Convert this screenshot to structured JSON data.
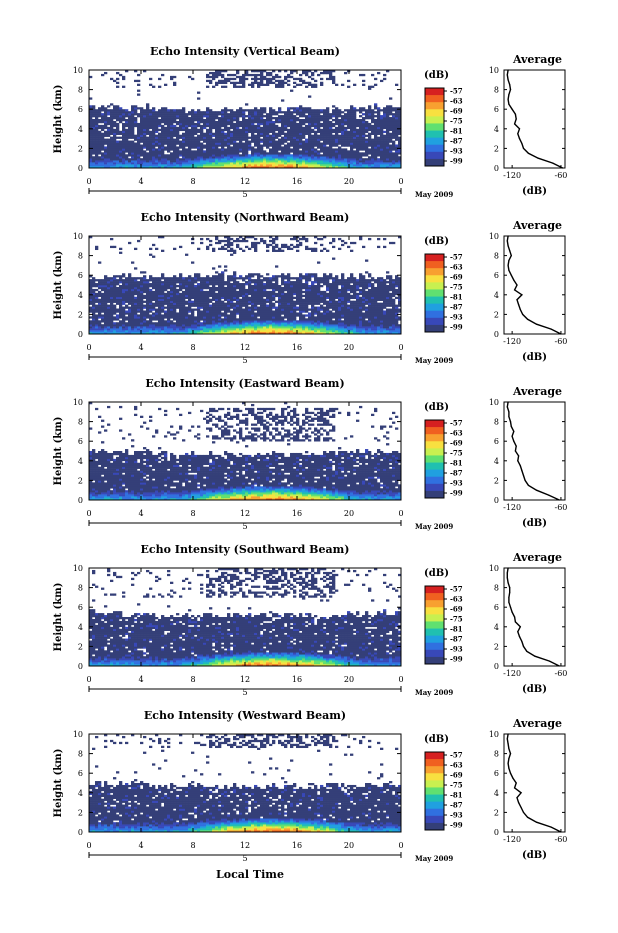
{
  "page": {
    "xlabel": "Local Time",
    "date_label": "May 2009",
    "day_label": "5",
    "ylabel": "Height (km)",
    "colorbar_unit": "(dB)",
    "avg_title": "Average",
    "avg_xlabel": "(dB)"
  },
  "chart_data": [
    {
      "type": "heatmap",
      "title": "Echo Intensity (Vertical Beam)",
      "x_ticks": [
        "0",
        "4",
        "8",
        "12",
        "16",
        "20",
        "0"
      ],
      "y_ticks": [
        "0",
        "2",
        "4",
        "6",
        "8",
        "10"
      ],
      "xlim": [
        0,
        24
      ],
      "ylim": [
        0,
        10
      ],
      "x_unit": "hour",
      "y_unit": "km",
      "colorbar": {
        "ticks": [
          "-57",
          "-63",
          "-69",
          "-75",
          "-81",
          "-87",
          "-93",
          "-99"
        ],
        "colors": [
          "#d62020",
          "#f06020",
          "#f8a030",
          "#f8e040",
          "#c8f050",
          "#60e070",
          "#20c0b0",
          "#20a0e0",
          "#3070e0",
          "#3848b8",
          "#343f78"
        ]
      },
      "layer_top_km": 6.3,
      "cloud_band_km": [
        8.2,
        10
      ],
      "average_profile": {
        "title": "Average",
        "xlabel": "(dB)",
        "x_ticks": [
          "-120",
          "-60"
        ],
        "xlim": [
          -130,
          -55
        ],
        "y_ticks": [
          "0",
          "2",
          "4",
          "6",
          "8",
          "10"
        ],
        "heights": [
          0,
          0.5,
          1,
          1.5,
          2,
          2.5,
          3,
          3.5,
          4,
          4.5,
          5,
          5.5,
          6,
          6.5,
          7,
          7.5,
          8,
          8.5,
          9,
          9.5,
          10
        ],
        "values": [
          -58,
          -70,
          -88,
          -100,
          -106,
          -108,
          -111,
          -113,
          -111,
          -117,
          -115,
          -116,
          -120,
          -124,
          -125,
          -124,
          -122,
          -123,
          -125,
          -126,
          -125
        ]
      }
    },
    {
      "type": "heatmap",
      "title": "Echo Intensity (Northward Beam)",
      "x_ticks": [
        "0",
        "4",
        "8",
        "12",
        "16",
        "20",
        "0"
      ],
      "y_ticks": [
        "0",
        "2",
        "4",
        "6",
        "8",
        "10"
      ],
      "xlim": [
        0,
        24
      ],
      "ylim": [
        0,
        10
      ],
      "x_unit": "hour",
      "y_unit": "km",
      "colorbar": {
        "ticks": [
          "-57",
          "-63",
          "-69",
          "-75",
          "-81",
          "-87",
          "-93",
          "-99"
        ],
        "colors": [
          "#d62020",
          "#f06020",
          "#f8a030",
          "#f8e040",
          "#c8f050",
          "#60e070",
          "#20c0b0",
          "#20a0e0",
          "#3070e0",
          "#3848b8",
          "#343f78"
        ]
      },
      "layer_top_km": 5.8,
      "cloud_band_km": [
        8.3,
        10
      ],
      "average_profile": {
        "title": "Average",
        "xlabel": "(dB)",
        "x_ticks": [
          "-120",
          "-60"
        ],
        "xlim": [
          -130,
          -55
        ],
        "y_ticks": [
          "0",
          "2",
          "4",
          "6",
          "8",
          "10"
        ],
        "heights": [
          0,
          0.5,
          1,
          1.5,
          2,
          2.5,
          3,
          3.5,
          4,
          4.5,
          5,
          5.5,
          6,
          6.5,
          7,
          7.5,
          8,
          8.5,
          9,
          9.5,
          10
        ],
        "values": [
          -60,
          -72,
          -90,
          -101,
          -107,
          -110,
          -112,
          -114,
          -108,
          -117,
          -114,
          -118,
          -121,
          -124,
          -125,
          -124,
          -121,
          -123,
          -125,
          -126,
          -125
        ]
      }
    },
    {
      "type": "heatmap",
      "title": "Echo Intensity (Eastward Beam)",
      "x_ticks": [
        "0",
        "4",
        "8",
        "12",
        "16",
        "20",
        "0"
      ],
      "y_ticks": [
        "0",
        "2",
        "4",
        "6",
        "8",
        "10"
      ],
      "xlim": [
        0,
        24
      ],
      "ylim": [
        0,
        10
      ],
      "x_unit": "hour",
      "y_unit": "km",
      "colorbar": {
        "ticks": [
          "-57",
          "-63",
          "-69",
          "-75",
          "-81",
          "-87",
          "-93",
          "-99"
        ],
        "colors": [
          "#d62020",
          "#f06020",
          "#f8a030",
          "#f8e040",
          "#c8f050",
          "#60e070",
          "#20c0b0",
          "#20a0e0",
          "#3070e0",
          "#3848b8",
          "#343f78"
        ]
      },
      "layer_top_km": 5.0,
      "cloud_band_km": [
        6.0,
        9.5
      ],
      "average_profile": {
        "title": "Average",
        "xlabel": "(dB)",
        "x_ticks": [
          "-120",
          "-60"
        ],
        "xlim": [
          -130,
          -55
        ],
        "y_ticks": [
          "0",
          "2",
          "4",
          "6",
          "8",
          "10"
        ],
        "heights": [
          0,
          0.5,
          1,
          1.5,
          2,
          2.5,
          3,
          3.5,
          4,
          4.5,
          5,
          5.5,
          6,
          6.5,
          7,
          7.5,
          8,
          8.5,
          9,
          9.5,
          10
        ],
        "values": [
          -62,
          -75,
          -90,
          -100,
          -104,
          -106,
          -108,
          -110,
          -113,
          -112,
          -116,
          -115,
          -118,
          -120,
          -118,
          -121,
          -122,
          -124,
          -124,
          -126,
          -125
        ]
      }
    },
    {
      "type": "heatmap",
      "title": "Echo Intensity (Southward Beam)",
      "x_ticks": [
        "0",
        "4",
        "8",
        "12",
        "16",
        "20",
        "0"
      ],
      "y_ticks": [
        "0",
        "2",
        "4",
        "6",
        "8",
        "10"
      ],
      "xlim": [
        0,
        24
      ],
      "ylim": [
        0,
        10
      ],
      "x_unit": "hour",
      "y_unit": "km",
      "colorbar": {
        "ticks": [
          "-57",
          "-63",
          "-69",
          "-75",
          "-81",
          "-87",
          "-93",
          "-99"
        ],
        "colors": [
          "#d62020",
          "#f06020",
          "#f8a030",
          "#f8e040",
          "#c8f050",
          "#60e070",
          "#20c0b0",
          "#20a0e0",
          "#3070e0",
          "#3848b8",
          "#343f78"
        ]
      },
      "layer_top_km": 5.5,
      "cloud_band_km": [
        7.0,
        10
      ],
      "average_profile": {
        "title": "Average",
        "xlabel": "(dB)",
        "x_ticks": [
          "-120",
          "-60"
        ],
        "xlim": [
          -130,
          -55
        ],
        "y_ticks": [
          "0",
          "2",
          "4",
          "6",
          "8",
          "10"
        ],
        "heights": [
          0,
          0.5,
          1,
          1.5,
          2,
          2.5,
          3,
          3.5,
          4,
          4.5,
          5,
          5.5,
          6,
          6.5,
          7,
          7.5,
          8,
          8.5,
          9,
          9.5,
          10
        ],
        "values": [
          -62,
          -74,
          -92,
          -102,
          -106,
          -108,
          -111,
          -113,
          -110,
          -116,
          -117,
          -120,
          -122,
          -124,
          -124,
          -123,
          -123,
          -125,
          -126,
          -126,
          -125
        ]
      }
    },
    {
      "type": "heatmap",
      "title": "Echo Intensity (Westward Beam)",
      "x_ticks": [
        "0",
        "4",
        "8",
        "12",
        "16",
        "20",
        "0"
      ],
      "y_ticks": [
        "0",
        "2",
        "4",
        "6",
        "8",
        "10"
      ],
      "xlim": [
        0,
        24
      ],
      "ylim": [
        0,
        10
      ],
      "x_unit": "hour",
      "y_unit": "km",
      "colorbar": {
        "ticks": [
          "-57",
          "-63",
          "-69",
          "-75",
          "-81",
          "-87",
          "-93",
          "-99"
        ],
        "colors": [
          "#d62020",
          "#f06020",
          "#f8a030",
          "#f8e040",
          "#c8f050",
          "#60e070",
          "#20c0b0",
          "#20a0e0",
          "#3070e0",
          "#3848b8",
          "#343f78"
        ]
      },
      "layer_top_km": 5.0,
      "cloud_band_km": [
        8.5,
        10
      ],
      "average_profile": {
        "title": "Average",
        "xlabel": "(dB)",
        "x_ticks": [
          "-120",
          "-60"
        ],
        "xlim": [
          -130,
          -55
        ],
        "y_ticks": [
          "0",
          "2",
          "4",
          "6",
          "8",
          "10"
        ],
        "heights": [
          0,
          0.5,
          1,
          1.5,
          2,
          2.5,
          3,
          3.5,
          4,
          4.5,
          5,
          5.5,
          6,
          6.5,
          7,
          7.5,
          8,
          8.5,
          9,
          9.5,
          10
        ],
        "values": [
          -60,
          -72,
          -90,
          -101,
          -106,
          -109,
          -112,
          -114,
          -109,
          -117,
          -115,
          -119,
          -122,
          -124,
          -125,
          -124,
          -122,
          -124,
          -125,
          -126,
          -125
        ]
      }
    }
  ]
}
